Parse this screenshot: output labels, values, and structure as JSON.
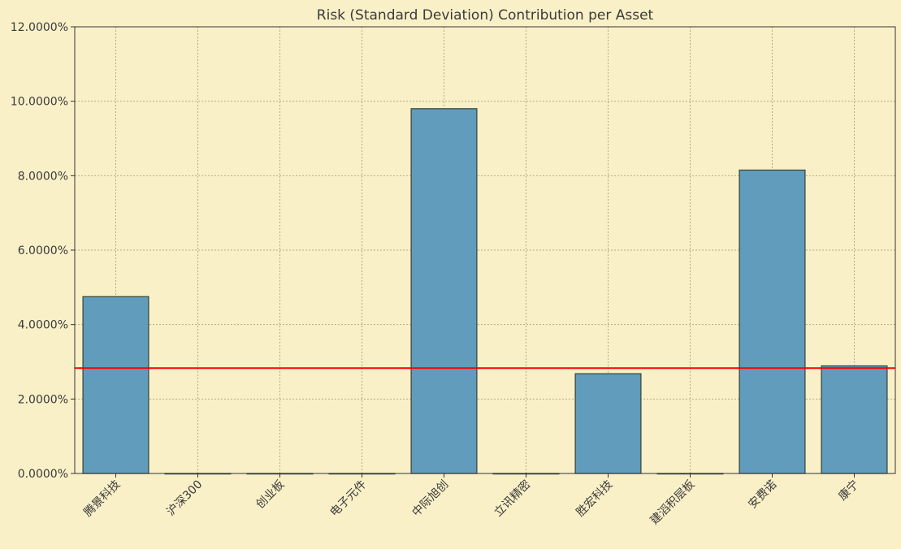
{
  "chart_data": {
    "type": "bar",
    "title": "Risk (Standard Deviation) Contribution per Asset",
    "xlabel": "",
    "ylabel": "",
    "categories": [
      "腾景科技",
      "沪深300",
      "创业板",
      "电子元件",
      "中际旭创",
      "立讯精密",
      "胜宏科技",
      "建滔积层板",
      "安费诺",
      "康宁"
    ],
    "values": [
      4.75,
      0.0,
      0.0,
      0.0,
      9.8,
      0.0,
      2.68,
      0.0,
      8.15,
      2.89
    ],
    "ylim": [
      0,
      12
    ],
    "yticks": [
      0,
      2,
      4,
      6,
      8,
      10,
      12
    ],
    "ytick_labels": [
      "0.0000%",
      "2.0000%",
      "4.0000%",
      "6.0000%",
      "8.0000%",
      "10.0000%",
      "12.0000%"
    ],
    "reference_line": 2.83,
    "grid": true,
    "colors": {
      "background": "#faf0c8",
      "bar_fill": "#619cbc",
      "bar_edge": "#3a4a40",
      "reference_line": "#ff0000",
      "grid": "#b5ab7e",
      "axes": "#333333"
    }
  }
}
